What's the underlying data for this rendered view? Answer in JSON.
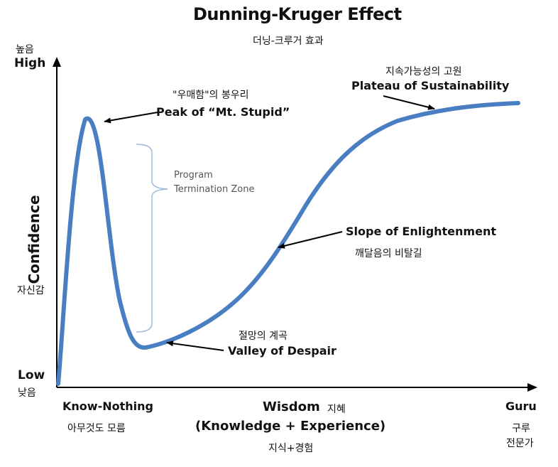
{
  "title": "Dunning-Kruger Effect",
  "subtitle_ko": "더닝-크루거 효과",
  "y_axis": {
    "label": "Confidence",
    "label_ko": "자신감",
    "high": "High",
    "high_ko": "높음",
    "low": "Low",
    "low_ko": "낮음"
  },
  "x_axis": {
    "label": "Wisdom",
    "label_ko": "지혜",
    "sub": "(Knowledge  +  Experience)",
    "sub_ko": "지식+경험",
    "start": "Know-Nothing",
    "start_ko": "아무것도 모름",
    "end": "Guru",
    "end_ko_1": "구루",
    "end_ko_2": "전문가"
  },
  "annotations": {
    "peak_ko": "\"우매함\"의 봉우리",
    "peak": "Peak of “Mt. Stupid”",
    "zone_1": "Program",
    "zone_2": "Termination Zone",
    "valley_ko": "절망의 계곡",
    "valley": "Valley of Despair",
    "slope": "Slope of Enlightenment",
    "slope_ko": "깨달음의 비탈길",
    "plateau_ko": "지속가능성의 고원",
    "plateau": "Plateau of Sustainability"
  },
  "colors": {
    "curve": "#4A7EC2",
    "bracket": "#9DB8D8",
    "axis": "#000000"
  }
}
